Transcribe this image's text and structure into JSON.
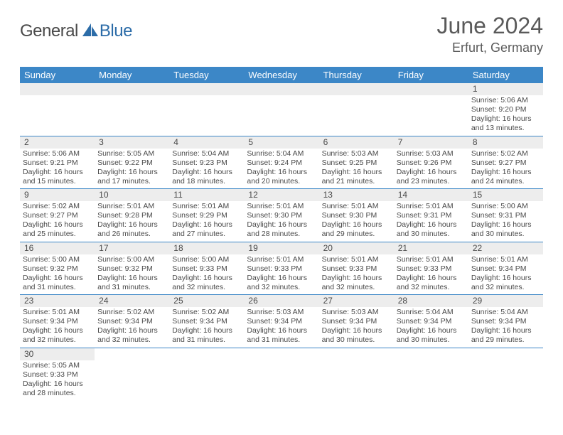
{
  "logo": {
    "part1": "General",
    "part2": "Blue"
  },
  "title": "June 2024",
  "location": "Erfurt, Germany",
  "colors": {
    "header_bg": "#3c87c7",
    "header_fg": "#ffffff",
    "daynum_bg": "#ededed",
    "text": "#4a4a4a",
    "accent": "#2c6ca8",
    "border": "#3c87c7"
  },
  "weekdays": [
    "Sunday",
    "Monday",
    "Tuesday",
    "Wednesday",
    "Thursday",
    "Friday",
    "Saturday"
  ],
  "weeks": [
    [
      null,
      null,
      null,
      null,
      null,
      null,
      {
        "n": "1",
        "sunrise": "5:06 AM",
        "sunset": "9:20 PM",
        "daylight": "16 hours and 13 minutes."
      }
    ],
    [
      {
        "n": "2",
        "sunrise": "5:06 AM",
        "sunset": "9:21 PM",
        "daylight": "16 hours and 15 minutes."
      },
      {
        "n": "3",
        "sunrise": "5:05 AM",
        "sunset": "9:22 PM",
        "daylight": "16 hours and 17 minutes."
      },
      {
        "n": "4",
        "sunrise": "5:04 AM",
        "sunset": "9:23 PM",
        "daylight": "16 hours and 18 minutes."
      },
      {
        "n": "5",
        "sunrise": "5:04 AM",
        "sunset": "9:24 PM",
        "daylight": "16 hours and 20 minutes."
      },
      {
        "n": "6",
        "sunrise": "5:03 AM",
        "sunset": "9:25 PM",
        "daylight": "16 hours and 21 minutes."
      },
      {
        "n": "7",
        "sunrise": "5:03 AM",
        "sunset": "9:26 PM",
        "daylight": "16 hours and 23 minutes."
      },
      {
        "n": "8",
        "sunrise": "5:02 AM",
        "sunset": "9:27 PM",
        "daylight": "16 hours and 24 minutes."
      }
    ],
    [
      {
        "n": "9",
        "sunrise": "5:02 AM",
        "sunset": "9:27 PM",
        "daylight": "16 hours and 25 minutes."
      },
      {
        "n": "10",
        "sunrise": "5:01 AM",
        "sunset": "9:28 PM",
        "daylight": "16 hours and 26 minutes."
      },
      {
        "n": "11",
        "sunrise": "5:01 AM",
        "sunset": "9:29 PM",
        "daylight": "16 hours and 27 minutes."
      },
      {
        "n": "12",
        "sunrise": "5:01 AM",
        "sunset": "9:30 PM",
        "daylight": "16 hours and 28 minutes."
      },
      {
        "n": "13",
        "sunrise": "5:01 AM",
        "sunset": "9:30 PM",
        "daylight": "16 hours and 29 minutes."
      },
      {
        "n": "14",
        "sunrise": "5:01 AM",
        "sunset": "9:31 PM",
        "daylight": "16 hours and 30 minutes."
      },
      {
        "n": "15",
        "sunrise": "5:00 AM",
        "sunset": "9:31 PM",
        "daylight": "16 hours and 30 minutes."
      }
    ],
    [
      {
        "n": "16",
        "sunrise": "5:00 AM",
        "sunset": "9:32 PM",
        "daylight": "16 hours and 31 minutes."
      },
      {
        "n": "17",
        "sunrise": "5:00 AM",
        "sunset": "9:32 PM",
        "daylight": "16 hours and 31 minutes."
      },
      {
        "n": "18",
        "sunrise": "5:00 AM",
        "sunset": "9:33 PM",
        "daylight": "16 hours and 32 minutes."
      },
      {
        "n": "19",
        "sunrise": "5:01 AM",
        "sunset": "9:33 PM",
        "daylight": "16 hours and 32 minutes."
      },
      {
        "n": "20",
        "sunrise": "5:01 AM",
        "sunset": "9:33 PM",
        "daylight": "16 hours and 32 minutes."
      },
      {
        "n": "21",
        "sunrise": "5:01 AM",
        "sunset": "9:33 PM",
        "daylight": "16 hours and 32 minutes."
      },
      {
        "n": "22",
        "sunrise": "5:01 AM",
        "sunset": "9:34 PM",
        "daylight": "16 hours and 32 minutes."
      }
    ],
    [
      {
        "n": "23",
        "sunrise": "5:01 AM",
        "sunset": "9:34 PM",
        "daylight": "16 hours and 32 minutes."
      },
      {
        "n": "24",
        "sunrise": "5:02 AM",
        "sunset": "9:34 PM",
        "daylight": "16 hours and 32 minutes."
      },
      {
        "n": "25",
        "sunrise": "5:02 AM",
        "sunset": "9:34 PM",
        "daylight": "16 hours and 31 minutes."
      },
      {
        "n": "26",
        "sunrise": "5:03 AM",
        "sunset": "9:34 PM",
        "daylight": "16 hours and 31 minutes."
      },
      {
        "n": "27",
        "sunrise": "5:03 AM",
        "sunset": "9:34 PM",
        "daylight": "16 hours and 30 minutes."
      },
      {
        "n": "28",
        "sunrise": "5:04 AM",
        "sunset": "9:34 PM",
        "daylight": "16 hours and 30 minutes."
      },
      {
        "n": "29",
        "sunrise": "5:04 AM",
        "sunset": "9:34 PM",
        "daylight": "16 hours and 29 minutes."
      }
    ],
    [
      {
        "n": "30",
        "sunrise": "5:05 AM",
        "sunset": "9:33 PM",
        "daylight": "16 hours and 28 minutes."
      },
      null,
      null,
      null,
      null,
      null,
      null
    ]
  ],
  "labels": {
    "sunrise": "Sunrise: ",
    "sunset": "Sunset: ",
    "daylight": "Daylight: "
  }
}
